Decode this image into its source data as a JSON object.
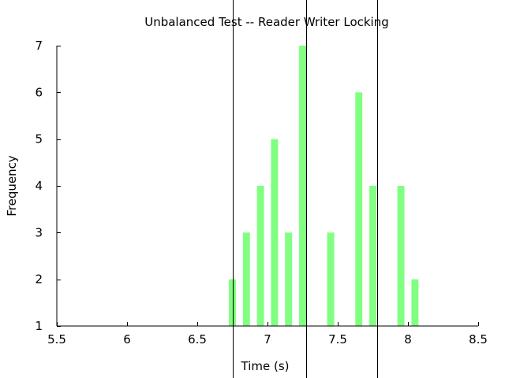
{
  "chart_data": {
    "type": "bar",
    "title": "Unbalanced Test -- Reader Writer Locking",
    "xlabel": "Time (s)",
    "ylabel": "Frequency",
    "xlim": [
      5.5,
      8.5
    ],
    "ylim": [
      1,
      7
    ],
    "xticks": [
      "5.5",
      "6",
      "6.5",
      "7",
      "7.5",
      "8",
      "8.5"
    ],
    "yticks": [
      "1",
      "2",
      "3",
      "4",
      "5",
      "6",
      "7"
    ],
    "grid": false,
    "legend": "none",
    "bar_color": "#80ff80",
    "bar_width": 0.05,
    "bars": [
      {
        "x": 6.75,
        "y": 2
      },
      {
        "x": 6.85,
        "y": 3
      },
      {
        "x": 6.95,
        "y": 4
      },
      {
        "x": 7.05,
        "y": 5
      },
      {
        "x": 7.15,
        "y": 3
      },
      {
        "x": 7.25,
        "y": 7
      },
      {
        "x": 7.45,
        "y": 3
      },
      {
        "x": 7.65,
        "y": 6
      },
      {
        "x": 7.75,
        "y": 4
      },
      {
        "x": 7.95,
        "y": 4
      },
      {
        "x": 8.05,
        "y": 2
      }
    ],
    "vertical_lines": [
      6.755,
      7.275,
      7.78
    ]
  }
}
